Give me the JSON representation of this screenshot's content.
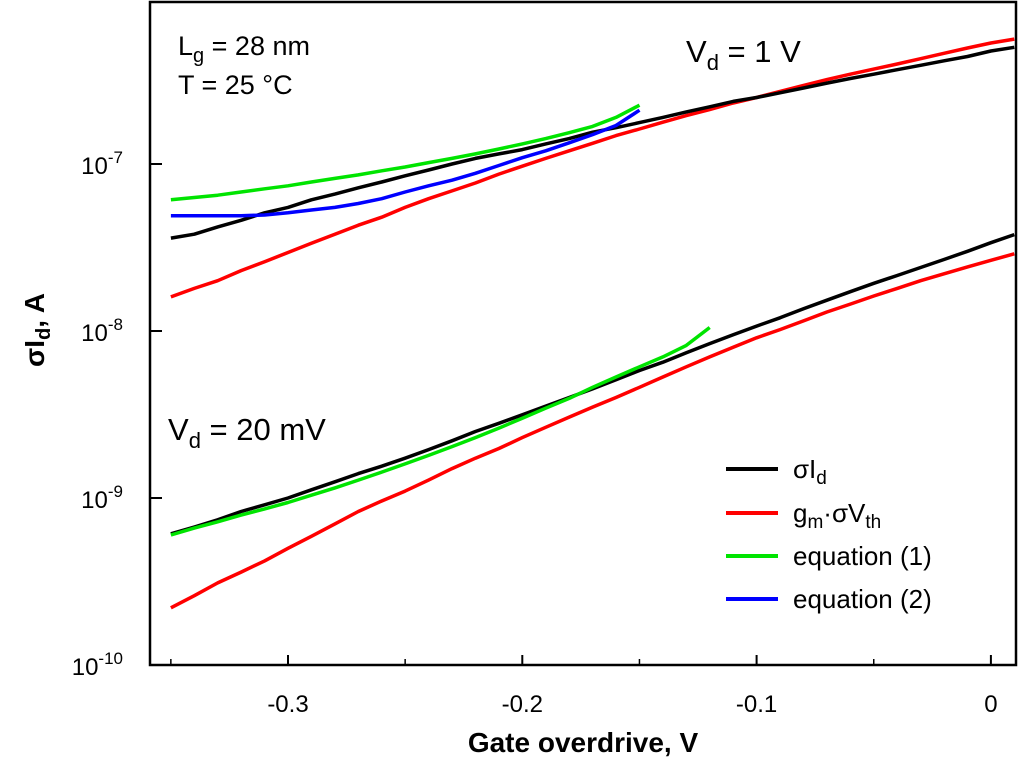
{
  "chart_data": {
    "type": "line",
    "xlabel": "Gate overdrive, V",
    "ylabel": "σId, A",
    "xlim": [
      -0.35,
      0.01
    ],
    "ylim": [
      1e-10,
      9e-07
    ],
    "yscale": "log",
    "grid": false,
    "legend_position": "bottom-right",
    "x_ticks": [
      {
        "value": -0.3,
        "label": "-0.3"
      },
      {
        "value": -0.2,
        "label": "-0.2"
      },
      {
        "value": -0.1,
        "label": "-0.1"
      },
      {
        "value": 0,
        "label": "0"
      }
    ],
    "y_ticks": [
      {
        "value": 1e-10,
        "base": "10",
        "exp": "-10"
      },
      {
        "value": 1e-09,
        "base": "10",
        "exp": "-9"
      },
      {
        "value": 1e-08,
        "base": "10",
        "exp": "-8"
      },
      {
        "value": 1e-07,
        "base": "10",
        "exp": "-7"
      }
    ],
    "annotations": {
      "lg": {
        "main": "L",
        "sub": "g",
        "rest": " = 28 nm"
      },
      "temp": "T = 25 °C",
      "vd_high": {
        "main": "V",
        "sub": "d",
        "rest": " = 1 V"
      },
      "vd_low": {
        "main": "V",
        "sub": "d",
        "rest": " = 20 mV"
      }
    },
    "legend": [
      {
        "key": "sigma_id",
        "main": "σI",
        "sub": "d",
        "color": "#000000"
      },
      {
        "key": "gm_sigma_vth",
        "main": "g",
        "sub": "m",
        "mid": "·σV",
        "sub2": "th",
        "color": "#ff0000"
      },
      {
        "key": "eq1",
        "main": "equation (1)",
        "color": "#00e400"
      },
      {
        "key": "eq2",
        "main": "equation (2)",
        "color": "#0000ff"
      }
    ],
    "series": [
      {
        "key": "sigma_id",
        "group": "Vd = 1 V",
        "color": "#000000",
        "x": [
          -0.35,
          -0.34,
          -0.33,
          -0.32,
          -0.31,
          -0.3,
          -0.29,
          -0.28,
          -0.27,
          -0.26,
          -0.25,
          -0.24,
          -0.23,
          -0.22,
          -0.21,
          -0.2,
          -0.19,
          -0.18,
          -0.17,
          -0.16,
          -0.15,
          -0.14,
          -0.13,
          -0.12,
          -0.11,
          -0.1,
          -0.09,
          -0.08,
          -0.07,
          -0.06,
          -0.05,
          -0.04,
          -0.03,
          -0.02,
          -0.01,
          0.0,
          0.01
        ],
        "y": [
          3.6e-08,
          3.8e-08,
          4.2e-08,
          4.6e-08,
          5.1e-08,
          5.5e-08,
          6.1e-08,
          6.6e-08,
          7.2e-08,
          7.8e-08,
          8.5e-08,
          9.2e-08,
          1e-07,
          1.08e-07,
          1.15e-07,
          1.22e-07,
          1.32e-07,
          1.42e-07,
          1.55e-07,
          1.65e-07,
          1.77e-07,
          1.9e-07,
          2.05e-07,
          2.2e-07,
          2.37e-07,
          2.5e-07,
          2.67e-07,
          2.85e-07,
          3.05e-07,
          3.25e-07,
          3.45e-07,
          3.67e-07,
          3.9e-07,
          4.15e-07,
          4.4e-07,
          4.75e-07,
          5e-07
        ]
      },
      {
        "key": "gm_sigma_vth",
        "group": "Vd = 1 V",
        "color": "#ff0000",
        "x": [
          -0.35,
          -0.34,
          -0.33,
          -0.32,
          -0.31,
          -0.3,
          -0.29,
          -0.28,
          -0.27,
          -0.26,
          -0.25,
          -0.24,
          -0.23,
          -0.22,
          -0.21,
          -0.2,
          -0.19,
          -0.18,
          -0.17,
          -0.16,
          -0.15,
          -0.14,
          -0.13,
          -0.12,
          -0.11,
          -0.1,
          -0.09,
          -0.08,
          -0.07,
          -0.06,
          -0.05,
          -0.04,
          -0.03,
          -0.02,
          -0.01,
          0.0,
          0.01
        ],
        "y": [
          1.6e-08,
          1.8e-08,
          2e-08,
          2.3e-08,
          2.6e-08,
          2.95e-08,
          3.35e-08,
          3.8e-08,
          4.3e-08,
          4.8e-08,
          5.5e-08,
          6.2e-08,
          6.9e-08,
          7.7e-08,
          8.7e-08,
          9.7e-08,
          1.08e-07,
          1.2e-07,
          1.33e-07,
          1.48e-07,
          1.62e-07,
          1.78e-07,
          1.95e-07,
          2.12e-07,
          2.32e-07,
          2.5e-07,
          2.72e-07,
          2.95e-07,
          3.2e-07,
          3.45e-07,
          3.7e-07,
          3.97e-07,
          4.27e-07,
          4.6e-07,
          4.95e-07,
          5.3e-07,
          5.6e-07
        ]
      },
      {
        "key": "eq1",
        "group": "Vd = 1 V",
        "color": "#00e400",
        "x": [
          -0.35,
          -0.34,
          -0.33,
          -0.32,
          -0.31,
          -0.3,
          -0.29,
          -0.28,
          -0.27,
          -0.26,
          -0.25,
          -0.24,
          -0.23,
          -0.22,
          -0.21,
          -0.2,
          -0.19,
          -0.18,
          -0.17,
          -0.16,
          -0.15
        ],
        "y": [
          6.1e-08,
          6.3e-08,
          6.5e-08,
          6.8e-08,
          7.1e-08,
          7.4e-08,
          7.8e-08,
          8.2e-08,
          8.6e-08,
          9.1e-08,
          9.6e-08,
          1.02e-07,
          1.08e-07,
          1.15e-07,
          1.23e-07,
          1.32e-07,
          1.42e-07,
          1.54e-07,
          1.68e-07,
          1.9e-07,
          2.25e-07
        ]
      },
      {
        "key": "eq2",
        "group": "Vd = 1 V",
        "color": "#0000ff",
        "x": [
          -0.35,
          -0.34,
          -0.33,
          -0.32,
          -0.31,
          -0.3,
          -0.29,
          -0.28,
          -0.27,
          -0.26,
          -0.25,
          -0.24,
          -0.23,
          -0.22,
          -0.21,
          -0.2,
          -0.19,
          -0.18,
          -0.17,
          -0.16,
          -0.15
        ],
        "y": [
          4.9e-08,
          4.9e-08,
          4.9e-08,
          4.9e-08,
          4.95e-08,
          5.1e-08,
          5.3e-08,
          5.5e-08,
          5.8e-08,
          6.2e-08,
          6.8e-08,
          7.4e-08,
          8e-08,
          8.8e-08,
          9.8e-08,
          1.09e-07,
          1.2e-07,
          1.34e-07,
          1.5e-07,
          1.7e-07,
          2.1e-07
        ]
      },
      {
        "key": "sigma_id",
        "group": "Vd = 20 mV",
        "color": "#000000",
        "x": [
          -0.35,
          -0.34,
          -0.33,
          -0.32,
          -0.31,
          -0.3,
          -0.29,
          -0.28,
          -0.27,
          -0.26,
          -0.25,
          -0.24,
          -0.23,
          -0.22,
          -0.21,
          -0.2,
          -0.19,
          -0.18,
          -0.17,
          -0.16,
          -0.15,
          -0.14,
          -0.13,
          -0.12,
          -0.11,
          -0.1,
          -0.09,
          -0.08,
          -0.07,
          -0.06,
          -0.05,
          -0.04,
          -0.03,
          -0.02,
          -0.01,
          0.0,
          0.01
        ],
        "y": [
          6.1e-10,
          6.7e-10,
          7.4e-10,
          8.3e-10,
          9.1e-10,
          1e-09,
          1.12e-09,
          1.25e-09,
          1.4e-09,
          1.55e-09,
          1.73e-09,
          1.95e-09,
          2.2e-09,
          2.5e-09,
          2.8e-09,
          3.15e-09,
          3.55e-09,
          4e-09,
          4.5e-09,
          5.1e-09,
          5.8e-09,
          6.5e-09,
          7.4e-09,
          8.4e-09,
          9.5e-09,
          1.07e-08,
          1.2e-08,
          1.36e-08,
          1.53e-08,
          1.72e-08,
          1.93e-08,
          2.15e-08,
          2.4e-08,
          2.68e-08,
          3e-08,
          3.38e-08,
          3.78e-08
        ]
      },
      {
        "key": "gm_sigma_vth",
        "group": "Vd = 20 mV",
        "color": "#ff0000",
        "x": [
          -0.35,
          -0.34,
          -0.33,
          -0.32,
          -0.31,
          -0.3,
          -0.29,
          -0.28,
          -0.27,
          -0.26,
          -0.25,
          -0.24,
          -0.23,
          -0.22,
          -0.21,
          -0.2,
          -0.19,
          -0.18,
          -0.17,
          -0.16,
          -0.15,
          -0.14,
          -0.13,
          -0.12,
          -0.11,
          -0.1,
          -0.09,
          -0.08,
          -0.07,
          -0.06,
          -0.05,
          -0.04,
          -0.03,
          -0.02,
          -0.01,
          0.0,
          0.01
        ],
        "y": [
          2.2e-10,
          2.6e-10,
          3.1e-10,
          3.6e-10,
          4.2e-10,
          5e-10,
          5.9e-10,
          7e-10,
          8.3e-10,
          9.6e-10,
          1.1e-09,
          1.28e-09,
          1.5e-09,
          1.73e-09,
          1.98e-09,
          2.3e-09,
          2.65e-09,
          3.05e-09,
          3.5e-09,
          4e-09,
          4.6e-09,
          5.3e-09,
          6.1e-09,
          7e-09,
          8e-09,
          9.1e-09,
          1.02e-08,
          1.15e-08,
          1.3e-08,
          1.45e-08,
          1.62e-08,
          1.8e-08,
          2e-08,
          2.2e-08,
          2.42e-08,
          2.65e-08,
          2.9e-08
        ]
      },
      {
        "key": "eq1",
        "group": "Vd = 20 mV",
        "color": "#00e400",
        "x": [
          -0.35,
          -0.34,
          -0.33,
          -0.32,
          -0.31,
          -0.3,
          -0.29,
          -0.28,
          -0.27,
          -0.26,
          -0.25,
          -0.24,
          -0.23,
          -0.22,
          -0.21,
          -0.2,
          -0.19,
          -0.18,
          -0.17,
          -0.16,
          -0.15,
          -0.14,
          -0.13,
          -0.12
        ],
        "y": [
          6e-10,
          6.6e-10,
          7.2e-10,
          7.9e-10,
          8.6e-10,
          9.4e-10,
          1.04e-09,
          1.15e-09,
          1.28e-09,
          1.43e-09,
          1.6e-09,
          1.8e-09,
          2.03e-09,
          2.3e-09,
          2.62e-09,
          3e-09,
          3.45e-09,
          3.95e-09,
          4.6e-09,
          5.3e-09,
          6.1e-09,
          7e-09,
          8.2e-09,
          1.05e-08
        ]
      }
    ]
  }
}
